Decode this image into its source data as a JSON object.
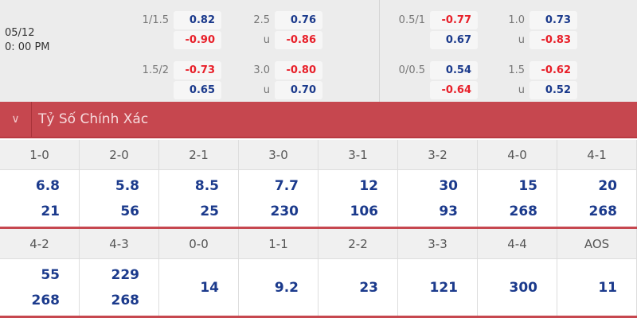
{
  "match": {
    "date": "05/12",
    "time": "0: 00 PM"
  },
  "odds_rows": [
    {
      "hcap": "1/1.5",
      "h1": "0.82",
      "h2": "-0.90",
      "ou": "2.5",
      "o1": "0.76",
      "ou2": "u",
      "o2": "-0.86",
      "hcap_r": "0.5/1",
      "r1": "-0.77",
      "r2": "0.67",
      "ou_r": "1.0",
      "s1": "0.73",
      "ou_r2": "u",
      "s2": "-0.83"
    },
    {
      "hcap": "1.5/2",
      "h1": "-0.73",
      "h2": "0.65",
      "ou": "3.0",
      "o1": "-0.80",
      "ou2": "u",
      "o2": "0.70",
      "hcap_r": "0/0.5",
      "r1": "0.54",
      "r2": "-0.64",
      "ou_r": "1.5",
      "s1": "-0.62",
      "ou_r2": "u",
      "s2": "0.52"
    }
  ],
  "section": {
    "title": "Tỷ Số Chính Xác"
  },
  "scores_row1": [
    {
      "score": "1-0",
      "a": "6.8",
      "b": "21"
    },
    {
      "score": "2-0",
      "a": "5.8",
      "b": "56"
    },
    {
      "score": "2-1",
      "a": "8.5",
      "b": "25"
    },
    {
      "score": "3-0",
      "a": "7.7",
      "b": "230"
    },
    {
      "score": "3-1",
      "a": "12",
      "b": "106"
    },
    {
      "score": "3-2",
      "a": "30",
      "b": "93"
    },
    {
      "score": "4-0",
      "a": "15",
      "b": "268"
    },
    {
      "score": "4-1",
      "a": "20",
      "b": "268"
    }
  ],
  "scores_row2": [
    {
      "score": "4-2",
      "a": "55",
      "b": "268"
    },
    {
      "score": "4-3",
      "a": "229",
      "b": "268"
    },
    {
      "score": "0-0",
      "a": "14"
    },
    {
      "score": "1-1",
      "a": "9.2"
    },
    {
      "score": "2-2",
      "a": "23"
    },
    {
      "score": "3-3",
      "a": "121"
    },
    {
      "score": "4-4",
      "a": "300"
    },
    {
      "score": "AOS",
      "a": "11"
    }
  ],
  "colors": {
    "accent": "#c6474f",
    "positive": "#1b3a8c",
    "negative": "#e8202a"
  }
}
